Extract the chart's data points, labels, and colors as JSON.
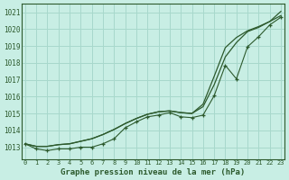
{
  "title": "Graphe pression niveau de la mer (hPa)",
  "bg_color": "#c8eee4",
  "grid_color": "#a8d8cc",
  "line_color": "#2d5a2d",
  "x_labels": [
    "0",
    "1",
    "2",
    "3",
    "4",
    "5",
    "6",
    "7",
    "8",
    "9",
    "10",
    "11",
    "12",
    "13",
    "14",
    "15",
    "16",
    "17",
    "18",
    "19",
    "20",
    "21",
    "22",
    "23"
  ],
  "ylim": [
    1012.3,
    1021.5
  ],
  "yticks": [
    1013,
    1014,
    1015,
    1016,
    1017,
    1018,
    1019,
    1020,
    1021
  ],
  "series_marked": [
    1013.2,
    1012.9,
    1012.8,
    1012.9,
    1012.9,
    1013.0,
    1013.0,
    1013.2,
    1013.5,
    1014.15,
    1014.5,
    1014.8,
    1014.9,
    1015.05,
    1014.8,
    1014.75,
    1014.9,
    1016.05,
    1017.85,
    1017.05,
    1018.95,
    1019.55,
    1020.25,
    1020.7
  ],
  "series_smooth1": [
    1013.2,
    1013.05,
    1013.05,
    1013.15,
    1013.2,
    1013.35,
    1013.5,
    1013.75,
    1014.05,
    1014.4,
    1014.7,
    1014.95,
    1015.1,
    1015.15,
    1015.05,
    1015.0,
    1015.4,
    1016.7,
    1018.35,
    1019.2,
    1019.85,
    1020.1,
    1020.45,
    1020.8
  ],
  "series_smooth2": [
    1013.2,
    1013.05,
    1013.05,
    1013.15,
    1013.2,
    1013.35,
    1013.5,
    1013.75,
    1014.05,
    1014.4,
    1014.7,
    1014.95,
    1015.1,
    1015.15,
    1015.05,
    1015.0,
    1015.55,
    1017.2,
    1018.9,
    1019.5,
    1019.9,
    1020.15,
    1020.45,
    1021.05
  ]
}
